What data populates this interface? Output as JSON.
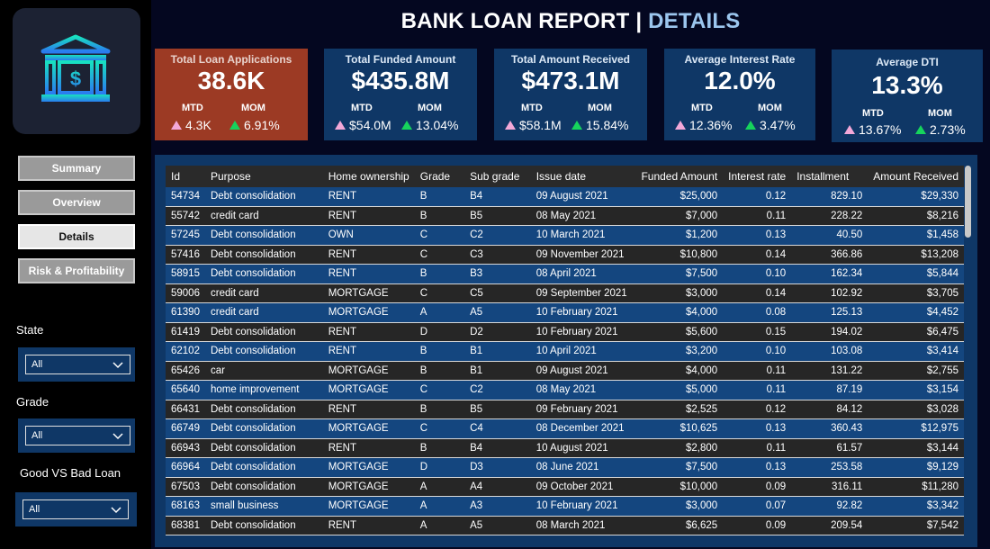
{
  "header": {
    "title_main": "BANK LOAN REPORT",
    "title_sep": "|",
    "title_sub": "DETAILS"
  },
  "colors": {
    "kpi_bg": "#0f3766",
    "kpi_highlight_bg": "#9c3a24",
    "accent": "#9cc6ee",
    "mtd_marker": "#f3a8d8",
    "mom_marker": "#16d35c"
  },
  "logo": {
    "icon": "bank-dollar-icon"
  },
  "nav": [
    {
      "label": "Summary",
      "active": false
    },
    {
      "label": "Overview",
      "active": false
    },
    {
      "label": "Details",
      "active": true
    },
    {
      "label": "Risk & Profitability",
      "active": false
    }
  ],
  "filters": [
    {
      "label": "State",
      "value": "All"
    },
    {
      "label": "Grade",
      "value": "All"
    },
    {
      "label": "Good VS Bad Loan",
      "value": "All"
    }
  ],
  "kpis": [
    {
      "title": "Total Loan Applications",
      "value": "38.6K",
      "mtd_label": "MTD",
      "mtd": "4.3K",
      "mom_label": "MOM",
      "mom": "6.91%"
    },
    {
      "title": "Total Funded Amount",
      "value": "$435.8M",
      "mtd_label": "MTD",
      "mtd": "$54.0M",
      "mom_label": "MOM",
      "mom": "13.04%"
    },
    {
      "title": "Total Amount Received",
      "value": "$473.1M",
      "mtd_label": "MTD",
      "mtd": "$58.1M",
      "mom_label": "MOM",
      "mom": "15.84%"
    },
    {
      "title": "Average Interest Rate",
      "value": "12.0%",
      "mtd_label": "MTD",
      "mtd": "12.36%",
      "mom_label": "MOM",
      "mom": "3.47%"
    },
    {
      "title": "Average DTI",
      "value": "13.3%",
      "mtd_label": "MTD",
      "mtd": "13.67%",
      "mom_label": "MOM",
      "mom": "2.73%"
    }
  ],
  "table": {
    "columns": [
      "Id",
      "Purpose",
      "Home ownership",
      "Grade",
      "Sub grade",
      "Issue date",
      "Funded Amount",
      "Interest rate",
      "Installment",
      "Amount Received"
    ],
    "rows": [
      [
        "54734",
        "Debt consolidation",
        "RENT",
        "B",
        "B4",
        "09 August 2021",
        "$25,000",
        "0.12",
        "829.10",
        "$29,330"
      ],
      [
        "55742",
        "credit card",
        "RENT",
        "B",
        "B5",
        "08 May 2021",
        "$7,000",
        "0.11",
        "228.22",
        "$8,216"
      ],
      [
        "57245",
        "Debt consolidation",
        "OWN",
        "C",
        "C2",
        "10 March 2021",
        "$1,200",
        "0.13",
        "40.50",
        "$1,458"
      ],
      [
        "57416",
        "Debt consolidation",
        "RENT",
        "C",
        "C3",
        "09 November 2021",
        "$10,800",
        "0.14",
        "366.86",
        "$13,208"
      ],
      [
        "58915",
        "Debt consolidation",
        "RENT",
        "B",
        "B3",
        "08 April 2021",
        "$7,500",
        "0.10",
        "162.34",
        "$5,844"
      ],
      [
        "59006",
        "credit card",
        "MORTGAGE",
        "C",
        "C5",
        "09 September 2021",
        "$3,000",
        "0.14",
        "102.92",
        "$3,705"
      ],
      [
        "61390",
        "credit card",
        "MORTGAGE",
        "A",
        "A5",
        "10 February 2021",
        "$4,000",
        "0.08",
        "125.13",
        "$4,452"
      ],
      [
        "61419",
        "Debt consolidation",
        "RENT",
        "D",
        "D2",
        "10 February 2021",
        "$5,600",
        "0.15",
        "194.02",
        "$6,475"
      ],
      [
        "62102",
        "Debt consolidation",
        "RENT",
        "B",
        "B1",
        "10 April 2021",
        "$3,200",
        "0.10",
        "103.08",
        "$3,414"
      ],
      [
        "65426",
        "car",
        "MORTGAGE",
        "B",
        "B1",
        "09 August 2021",
        "$4,000",
        "0.11",
        "131.22",
        "$2,755"
      ],
      [
        "65640",
        "home improvement",
        "MORTGAGE",
        "C",
        "C2",
        "08 May 2021",
        "$5,000",
        "0.11",
        "87.19",
        "$3,154"
      ],
      [
        "66431",
        "Debt consolidation",
        "RENT",
        "B",
        "B5",
        "09 February 2021",
        "$2,525",
        "0.12",
        "84.12",
        "$3,028"
      ],
      [
        "66749",
        "Debt consolidation",
        "MORTGAGE",
        "C",
        "C4",
        "08 December 2021",
        "$10,625",
        "0.13",
        "360.43",
        "$12,975"
      ],
      [
        "66943",
        "Debt consolidation",
        "RENT",
        "B",
        "B4",
        "10 August 2021",
        "$2,800",
        "0.11",
        "61.57",
        "$3,144"
      ],
      [
        "66964",
        "Debt consolidation",
        "MORTGAGE",
        "D",
        "D3",
        "08 June 2021",
        "$7,500",
        "0.13",
        "253.58",
        "$9,129"
      ],
      [
        "67503",
        "Debt consolidation",
        "MORTGAGE",
        "A",
        "A4",
        "09 October 2021",
        "$10,000",
        "0.09",
        "316.11",
        "$11,280"
      ],
      [
        "68163",
        "small business",
        "MORTGAGE",
        "A",
        "A3",
        "10 February 2021",
        "$3,000",
        "0.07",
        "92.82",
        "$3,342"
      ],
      [
        "68381",
        "Debt consolidation",
        "RENT",
        "A",
        "A5",
        "08 March 2021",
        "$6,625",
        "0.09",
        "209.54",
        "$7,542"
      ]
    ]
  }
}
